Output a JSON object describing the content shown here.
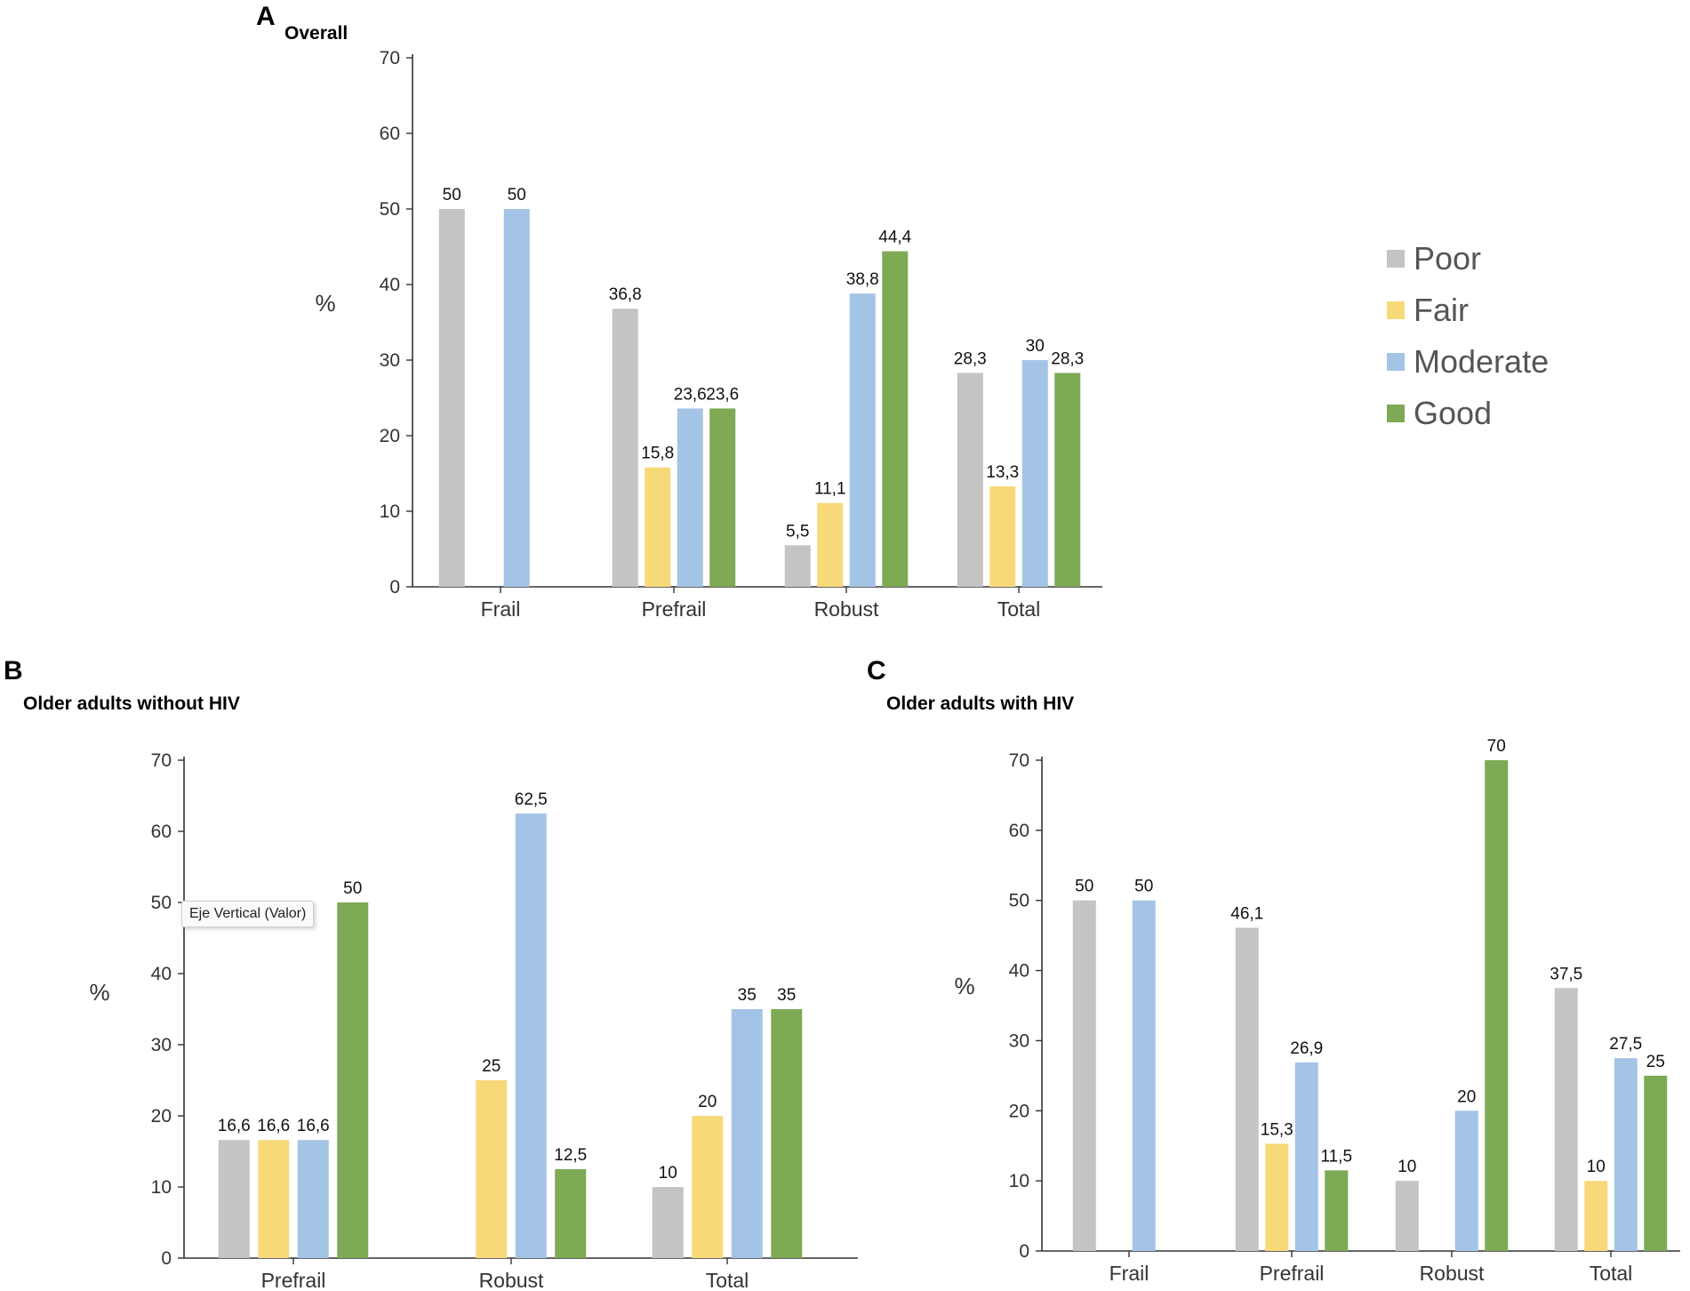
{
  "panels": {
    "a": {
      "letter": "A",
      "title": "Overall"
    },
    "b": {
      "letter": "B",
      "title": "Older adults without HIV"
    },
    "c": {
      "letter": "C",
      "title": "Older adults with HIV"
    }
  },
  "tooltip": {
    "text": "Eje Vertical (Valor)"
  },
  "legend": [
    {
      "label": "Poor",
      "color": "#c4c4c4"
    },
    {
      "label": "Fair",
      "color": "#f8d97a"
    },
    {
      "label": "Moderate",
      "color": "#a4c4e6"
    },
    {
      "label": "Good",
      "color": "#7ea955"
    }
  ],
  "chart_data": [
    {
      "id": "a",
      "type": "bar",
      "title": "Overall",
      "ylabel": "%",
      "xlabel": "",
      "ylim": [
        0,
        70
      ],
      "yticks": [
        0,
        10,
        20,
        30,
        40,
        50,
        60,
        70
      ],
      "categories": [
        "Frail",
        "Prefrail",
        "Robust",
        "Total"
      ],
      "series": [
        {
          "name": "Poor",
          "values": [
            50,
            36.8,
            5.5,
            28.3
          ],
          "labels": [
            "50",
            "36,8",
            "5,5",
            "28,3"
          ]
        },
        {
          "name": "Fair",
          "values": [
            null,
            15.8,
            11.1,
            13.3
          ],
          "labels": [
            "",
            "15,8",
            "11,1",
            "13,3"
          ]
        },
        {
          "name": "Moderate",
          "values": [
            50,
            23.6,
            38.8,
            30
          ],
          "labels": [
            "50",
            "23,6",
            "38,8",
            "30"
          ]
        },
        {
          "name": "Good",
          "values": [
            null,
            23.6,
            44.4,
            28.3
          ],
          "labels": [
            "",
            "23,6",
            "44,4",
            "28,3"
          ]
        }
      ]
    },
    {
      "id": "b",
      "type": "bar",
      "title": "Older adults without HIV",
      "ylabel": "%",
      "xlabel": "",
      "ylim": [
        0,
        70
      ],
      "yticks": [
        0,
        10,
        20,
        30,
        40,
        50,
        60,
        70
      ],
      "categories": [
        "Prefrail",
        "Robust",
        "Total"
      ],
      "series": [
        {
          "name": "Poor",
          "values": [
            16.6,
            null,
            10
          ],
          "labels": [
            "16,6",
            "",
            "10"
          ]
        },
        {
          "name": "Fair",
          "values": [
            16.6,
            25,
            20
          ],
          "labels": [
            "16,6",
            "25",
            "20"
          ]
        },
        {
          "name": "Moderate",
          "values": [
            16.6,
            62.5,
            35
          ],
          "labels": [
            "16,6",
            "62,5",
            "35"
          ]
        },
        {
          "name": "Good",
          "values": [
            50,
            12.5,
            35
          ],
          "labels": [
            "50",
            "12,5",
            "35"
          ]
        }
      ]
    },
    {
      "id": "c",
      "type": "bar",
      "title": "Older adults with HIV",
      "ylabel": "%",
      "xlabel": "",
      "ylim": [
        0,
        70
      ],
      "yticks": [
        0,
        10,
        20,
        30,
        40,
        50,
        60,
        70
      ],
      "categories": [
        "Frail",
        "Prefrail",
        "Robust",
        "Total"
      ],
      "series": [
        {
          "name": "Poor",
          "values": [
            50,
            46.1,
            10,
            37.5
          ],
          "labels": [
            "50",
            "46,1",
            "10",
            "37,5"
          ]
        },
        {
          "name": "Fair",
          "values": [
            null,
            15.3,
            null,
            10
          ],
          "labels": [
            "",
            "15,3",
            "",
            "10"
          ]
        },
        {
          "name": "Moderate",
          "values": [
            50,
            26.9,
            20,
            27.5
          ],
          "labels": [
            "50",
            "26,9",
            "20",
            "27,5"
          ]
        },
        {
          "name": "Good",
          "values": [
            null,
            11.5,
            70,
            25
          ],
          "labels": [
            "",
            "11,5",
            "70",
            "25"
          ]
        }
      ]
    }
  ]
}
